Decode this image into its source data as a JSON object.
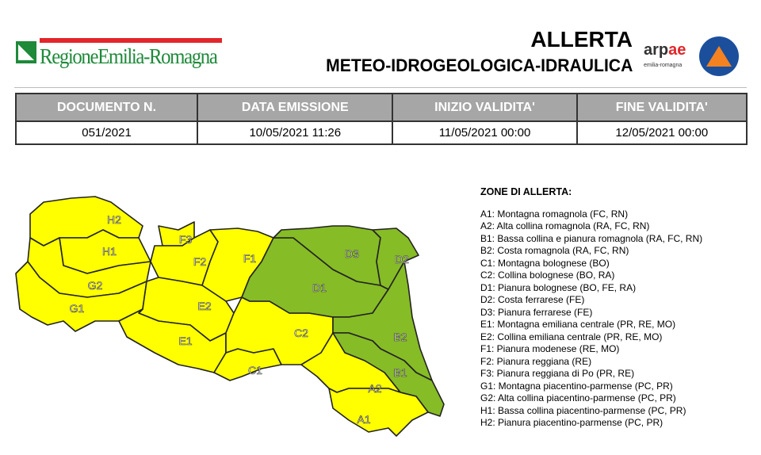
{
  "header": {
    "logo_text": "RegioneEmilia-Romagna",
    "title": "ALLERTA",
    "subtitle": "METEO-IDROGEOLOGICA-IDRAULICA",
    "arpae": "arpae",
    "arpae_sub": "emilia-romagna",
    "pc_logo": "Protezione Civile Regione Emilia-Romagna"
  },
  "table": {
    "headers": [
      "DOCUMENTO N.",
      "DATA EMISSIONE",
      "INIZIO VALIDITA'",
      "FINE VALIDITA'"
    ],
    "values": [
      "051/2021",
      "10/05/2021 11:26",
      "11/05/2021 00:00",
      "12/05/2021 00:00"
    ]
  },
  "colors": {
    "yellow": "#ffff00",
    "green": "#86bc25"
  },
  "map": {
    "zones": [
      {
        "id": "H2",
        "level": "yellow"
      },
      {
        "id": "H1",
        "level": "yellow"
      },
      {
        "id": "G2",
        "level": "yellow"
      },
      {
        "id": "G1",
        "level": "yellow"
      },
      {
        "id": "F3",
        "level": "yellow"
      },
      {
        "id": "F2",
        "level": "yellow"
      },
      {
        "id": "F1",
        "level": "yellow"
      },
      {
        "id": "E2",
        "level": "yellow"
      },
      {
        "id": "E1",
        "level": "yellow"
      },
      {
        "id": "C1",
        "level": "yellow"
      },
      {
        "id": "C2",
        "level": "yellow"
      },
      {
        "id": "D1",
        "level": "green"
      },
      {
        "id": "D3",
        "level": "green"
      },
      {
        "id": "D2",
        "level": "green"
      },
      {
        "id": "B2",
        "level": "green"
      },
      {
        "id": "B1",
        "level": "green"
      },
      {
        "id": "A2",
        "level": "yellow"
      },
      {
        "id": "A1",
        "level": "yellow"
      }
    ]
  },
  "legend": {
    "title": "ZONE DI ALLERTA:",
    "items": [
      "A1: Montagna romagnola (FC, RN)",
      "A2: Alta collina romagnola (RA, FC, RN)",
      "B1: Bassa collina e pianura romagnola (RA, FC, RN)",
      "B2: Costa romagnola (RA, FC, RN)",
      "C1: Montagna bolognese (BO)",
      "C2: Collina bolognese (BO, RA)",
      "D1: Pianura bolognese (BO, FE, RA)",
      "D2: Costa ferrarese (FE)",
      "D3: Pianura ferrarese (FE)",
      "E1: Montagna emiliana centrale (PR, RE, MO)",
      "E2: Collina emiliana centrale (PR, RE, MO)",
      "F1: Pianura modenese (RE, MO)",
      "F2: Pianura reggiana (RE)",
      "F3: Pianura reggiana di Po (PR, RE)",
      "G1: Montagna piacentino-parmense (PC, PR)",
      "G2: Alta collina piacentino-parmense (PC, PR)",
      "H1: Bassa collina piacentino-parmense (PC, PR)",
      "H2: Pianura piacentino-parmense (PC, PR)"
    ]
  }
}
